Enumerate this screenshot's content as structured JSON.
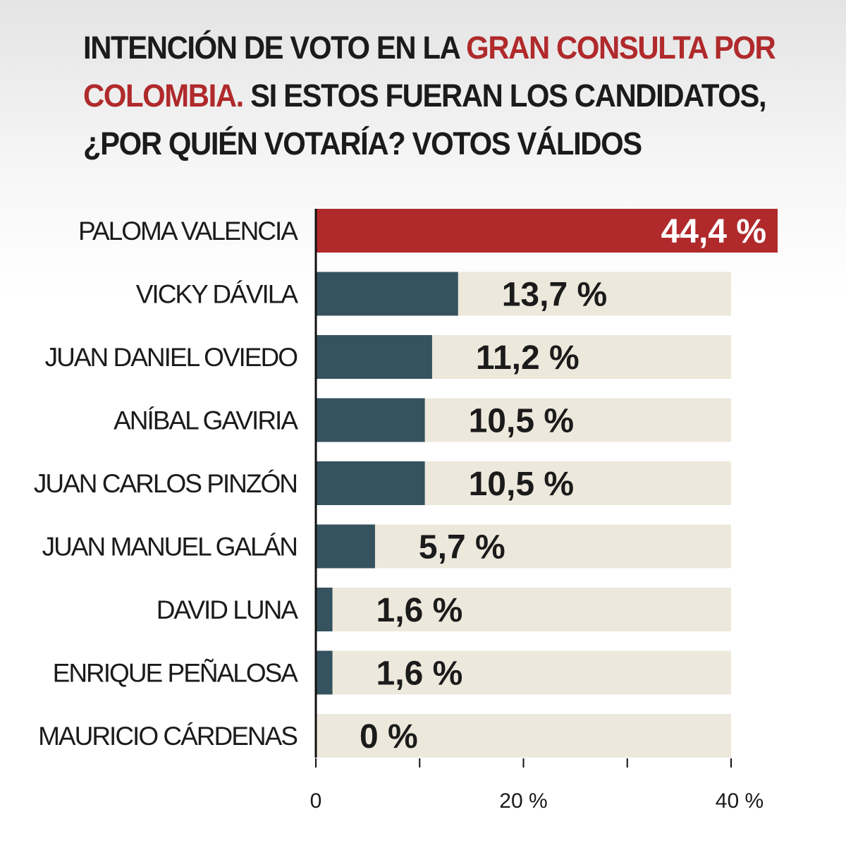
{
  "title": {
    "part1": "INTENCIÓN DE VOTO EN LA ",
    "part2": "GRAN CONSULTA POR",
    "part3": "COLOMBIA.",
    "part4": " SI ESTOS FUERAN LOS CANDIDATOS,",
    "part5": "¿POR QUIÉN VOTARÍA? VOTOS VÁLIDOS"
  },
  "colors": {
    "highlight": "#b02a2c",
    "bar": "#35525f",
    "track": "#ede8dc",
    "text": "#1b1b1b"
  },
  "chart_data": {
    "type": "bar",
    "orientation": "horizontal",
    "title": "INTENCIÓN DE VOTO EN LA GRAN CONSULTA POR COLOMBIA. SI ESTOS FUERAN LOS CANDIDATOS, ¿POR QUIÉN VOTARÍA? VOTOS VÁLIDOS",
    "categories": [
      "PALOMA VALENCIA",
      "VICKY DÁVILA",
      "JUAN DANIEL OVIEDO",
      "ANÍBAL GAVIRIA",
      "JUAN CARLOS PINZÓN",
      "JUAN MANUEL GALÁN",
      "DAVID LUNA",
      "ENRIQUE PEÑALOSA",
      "MAURICIO CÁRDENAS"
    ],
    "values": [
      44.4,
      13.7,
      11.2,
      10.5,
      10.5,
      5.7,
      1.6,
      1.6,
      0
    ],
    "value_labels": [
      "44,4 %",
      "13,7 %",
      "11,2 %",
      "10,5 %",
      "10,5 %",
      "5,7 %",
      "1,6 %",
      "1,6 %",
      "0 %"
    ],
    "xlim": [
      0,
      40
    ],
    "x_ticks": [
      0,
      10,
      20,
      30,
      40
    ],
    "x_tick_labels": [
      "0",
      "",
      "20 %",
      "",
      "40 %"
    ],
    "highlight_index": 0,
    "xlabel": "",
    "ylabel": ""
  }
}
